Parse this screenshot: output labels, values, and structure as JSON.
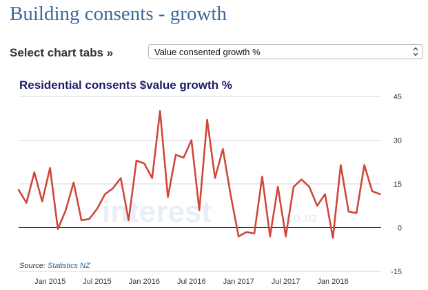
{
  "page": {
    "title": "Building consents - growth"
  },
  "tabs": {
    "label": "Select chart tabs »",
    "selected": "Value consented growth %"
  },
  "source": {
    "prefix": "Source:",
    "link_text": "Statistics NZ"
  },
  "watermark": {
    "main": "interest",
    "suffix": ".co.nz"
  },
  "colors": {
    "title": "#3d6a9a",
    "chart_title": "#1d1d6b",
    "series": "#d0463a",
    "grid": "#d5d5d5",
    "zero_line": "#000000",
    "link": "#2f5f9c"
  },
  "chart_data": {
    "type": "line",
    "title": "Residential consents $value growth %",
    "xlabel": "",
    "ylabel": "",
    "ylim": [
      -15,
      45
    ],
    "yticks": [
      45,
      30,
      15,
      0,
      -15
    ],
    "x_start": "2014-09",
    "x_interval": "month",
    "xtick_labels": [
      "Jan 2015",
      "Jul 2015",
      "Jan 2016",
      "Jul 2016",
      "Jan 2017",
      "Jul 2017",
      "Jan 2018"
    ],
    "xtick_index": [
      4,
      10,
      16,
      22,
      28,
      34,
      40
    ],
    "grid": true,
    "series": [
      {
        "name": "Residential consents $value growth %",
        "values": [
          13,
          8.5,
          19,
          9,
          20.5,
          -0.5,
          6,
          15.5,
          2.5,
          3,
          6.5,
          11.5,
          13.5,
          17,
          2.5,
          23,
          22,
          17,
          40,
          10.5,
          25,
          24,
          30,
          6,
          37,
          17,
          27,
          11,
          -3,
          -1.5,
          -2,
          17.5,
          -3,
          14,
          -3,
          14,
          16.5,
          14,
          7.5,
          11.5,
          -3.5,
          21.5,
          5.5,
          5,
          21.5,
          12.5,
          11.5
        ]
      }
    ]
  }
}
